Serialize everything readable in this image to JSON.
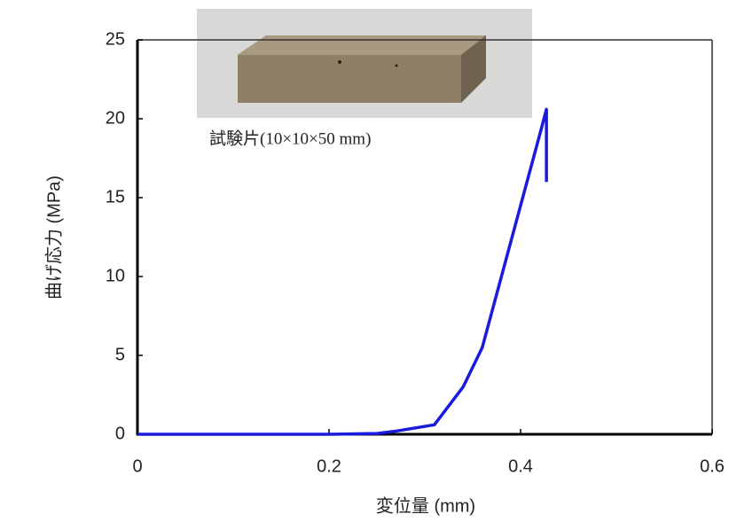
{
  "chart_data": {
    "type": "line",
    "x_label": "変位量 (mm)",
    "y_label": "曲げ応力 (MPa)",
    "annotation": "試験片(10×10×50 mm)",
    "x": [
      0,
      0.2,
      0.25,
      0.27,
      0.31,
      0.34,
      0.36,
      0.38,
      0.4,
      0.42,
      0.427,
      0.427
    ],
    "series": [
      {
        "color": "#1a1adf",
        "values": [
          0,
          0,
          0.05,
          0.2,
          0.6,
          3,
          5.5,
          10,
          14.5,
          19,
          20.6,
          16
        ]
      }
    ],
    "xlim": [
      0,
      0.6
    ],
    "xticks": [
      0,
      0.2,
      0.4,
      0.6
    ],
    "ylim": [
      0,
      25
    ],
    "yticks": [
      0,
      5,
      10,
      15,
      20,
      25
    ],
    "grid": false
  }
}
